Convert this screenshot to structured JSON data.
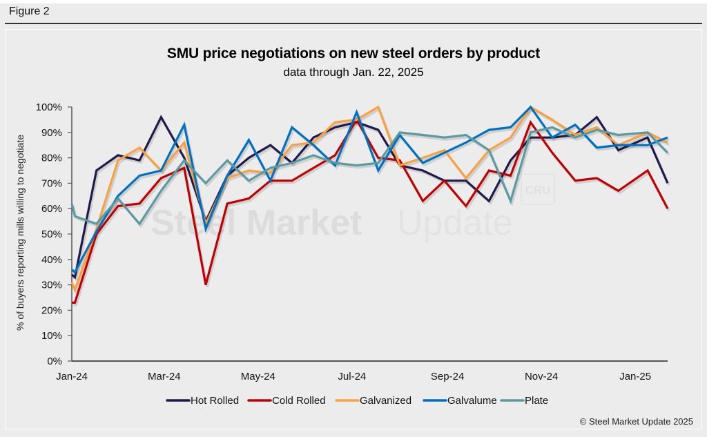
{
  "figure_label": "Figure 2",
  "footer": "© Steel Market Update 2025",
  "watermark": {
    "bold": "Steel Market",
    "light": "Update",
    "badge": "CRU"
  },
  "chart_data": {
    "type": "line",
    "title": "SMU price negotiations on new steel orders by product",
    "subtitle": "data through Jan. 22, 2025",
    "xlabel": "",
    "ylabel": "% of buyers reporting mills willing to negotiate",
    "ylim": [
      0,
      100
    ],
    "y_ticks": [
      "0%",
      "10%",
      "20%",
      "30%",
      "40%",
      "50%",
      "60%",
      "70%",
      "80%",
      "90%",
      "100%"
    ],
    "x_ticks": [
      {
        "label": "Jan-24",
        "date": "2024-01-01"
      },
      {
        "label": "Mar-24",
        "date": "2024-03-01"
      },
      {
        "label": "May-24",
        "date": "2024-05-01"
      },
      {
        "label": "Jul-24",
        "date": "2024-07-01"
      },
      {
        "label": "Sep-24",
        "date": "2024-09-01"
      },
      {
        "label": "Nov-24",
        "date": "2024-11-01"
      },
      {
        "label": "Jan-25",
        "date": "2025-01-01"
      }
    ],
    "xlim": [
      "2024-01-01",
      "2025-01-22"
    ],
    "grid": false,
    "legend_position": "bottom",
    "x": [
      "2024-01-01",
      "2024-01-03",
      "2024-01-17",
      "2024-01-31",
      "2024-02-14",
      "2024-02-28",
      "2024-03-14",
      "2024-03-28",
      "2024-04-11",
      "2024-04-25",
      "2024-05-09",
      "2024-05-23",
      "2024-06-06",
      "2024-06-20",
      "2024-07-04",
      "2024-07-18",
      "2024-08-01",
      "2024-08-16",
      "2024-08-30",
      "2024-09-13",
      "2024-09-28",
      "2024-10-12",
      "2024-10-25",
      "2024-11-08",
      "2024-11-23",
      "2024-12-07",
      "2024-12-21",
      "2025-01-09",
      "2025-01-22"
    ],
    "series": [
      {
        "name": "Hot Rolled",
        "color": "#1f1a4a",
        "values": [
          34,
          33,
          75,
          81,
          79,
          96,
          80,
          55,
          73,
          80,
          85,
          78,
          88,
          92,
          94,
          91,
          77,
          75,
          71,
          71,
          63,
          79,
          88,
          88,
          89,
          96,
          83,
          88,
          70
        ]
      },
      {
        "name": "Cold Rolled",
        "color": "#c00000",
        "values": [
          23,
          23,
          50,
          61,
          62,
          72,
          76,
          30,
          62,
          64,
          71,
          71,
          76,
          81,
          95,
          80,
          79,
          63,
          71,
          61,
          75,
          73,
          94,
          82,
          71,
          72,
          67,
          75,
          60
        ]
      },
      {
        "name": "Galvanized",
        "color": "#f9a03f",
        "values": [
          31,
          28,
          52,
          79,
          84,
          75,
          86,
          54,
          72,
          75,
          74,
          85,
          86,
          94,
          95,
          100,
          77,
          80,
          83,
          72,
          83,
          88,
          100,
          95,
          89,
          92,
          85,
          90,
          86
        ]
      },
      {
        "name": "Galvalume",
        "color": "#0070c0",
        "values": [
          36,
          35,
          51,
          65,
          73,
          75,
          93,
          52,
          73,
          87,
          71,
          92,
          85,
          77,
          98,
          75,
          89,
          78,
          82,
          86,
          91,
          92,
          100,
          88,
          93,
          84,
          85,
          85,
          88
        ]
      },
      {
        "name": "Plate",
        "color": "#5b9aa0",
        "values": [
          62,
          57,
          54,
          64,
          54,
          67,
          79,
          70,
          79,
          71,
          76,
          78,
          81,
          78,
          77,
          78,
          90,
          89,
          88,
          89,
          83,
          63,
          90,
          92,
          88,
          91,
          89,
          90,
          82
        ]
      }
    ]
  }
}
